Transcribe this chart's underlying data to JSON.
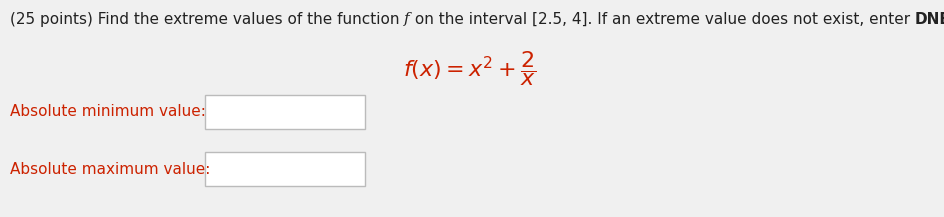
{
  "background_color": "#f0f0f0",
  "page_color": "#f0f0f0",
  "title_parts": [
    {
      "text": "(25 points) Find the extreme values of the function ",
      "style": "normal",
      "weight": "normal",
      "family": "sans-serif",
      "color": "#222222"
    },
    {
      "text": "f",
      "style": "italic",
      "weight": "normal",
      "family": "serif",
      "color": "#222222"
    },
    {
      "text": " on the interval [2.5, 4]. If an extreme value does not exist, enter ",
      "style": "normal",
      "weight": "normal",
      "family": "sans-serif",
      "color": "#222222"
    },
    {
      "text": "DNE",
      "style": "normal",
      "weight": "bold",
      "family": "sans-serif",
      "color": "#222222"
    },
    {
      "text": " .",
      "style": "normal",
      "weight": "normal",
      "family": "sans-serif",
      "color": "#222222"
    }
  ],
  "formula_color": "#cc2200",
  "label_color": "#cc2200",
  "label1": "Absolute minimum value:",
  "label2": "Absolute maximum value:",
  "box_facecolor": "#ffffff",
  "box_edgecolor": "#bbbbbb",
  "font_size_title": 11,
  "font_size_labels": 11,
  "font_size_formula": 16
}
